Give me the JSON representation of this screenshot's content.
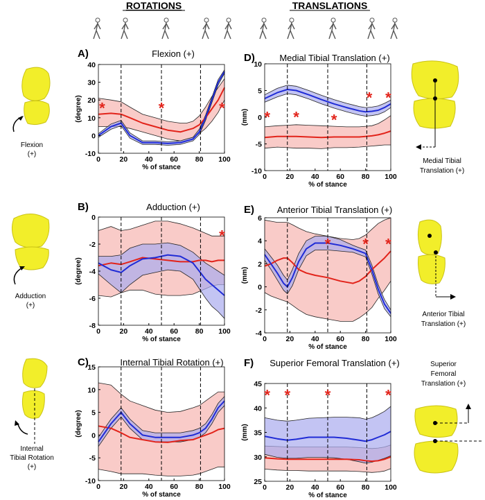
{
  "headers": {
    "rotations": "ROTATIONS",
    "translations": "TRANSLATIONS"
  },
  "side_labels": {
    "flexion": [
      "Flexion",
      "(+)"
    ],
    "adduction": [
      "Adduction",
      "(+)"
    ],
    "internal": [
      "Internal",
      "Tibial Rotation",
      "(+)"
    ],
    "medial": [
      "Medial Tibial",
      "Translation (+)"
    ],
    "anterior": [
      "Anterior Tibial",
      "Translation (+)"
    ],
    "superior": [
      "Superior",
      "Femoral",
      "Translation (+)"
    ]
  },
  "colors": {
    "red": "#e2231a",
    "red_band": "#f7b9b6",
    "blue": "#1f2bd6",
    "blue_band": "#a9abee",
    "bone": "#f2ee2a",
    "bone_dark": "#c9c214"
  },
  "chart_data": [
    {
      "letter": "A)",
      "title": "Flexion (+)",
      "type": "line",
      "xlabel": "% of stance",
      "ylabel": "(degree)",
      "ylim": [
        -10,
        40
      ],
      "yticks": [
        -10,
        0,
        10,
        20,
        30,
        40
      ],
      "xlim": [
        0,
        100
      ],
      "xticks": [
        0,
        20,
        40,
        60,
        80,
        100
      ],
      "vlines": [
        18,
        50,
        81
      ],
      "stars": [
        [
          3,
          16
        ],
        [
          50,
          16
        ],
        [
          98,
          16
        ]
      ],
      "x": [
        0,
        10,
        18,
        25,
        35,
        45,
        55,
        65,
        70,
        75,
        80,
        85,
        90,
        95,
        100
      ],
      "series": [
        {
          "name": "red",
          "mean": [
            12,
            12.5,
            12,
            10,
            7,
            5,
            3,
            2,
            3,
            4,
            6,
            10,
            15,
            20,
            27
          ],
          "upper": [
            21,
            20,
            19,
            16,
            12,
            10,
            8,
            7,
            7,
            8,
            11,
            16,
            22,
            27,
            32
          ],
          "lower": [
            5,
            5,
            5,
            4,
            2,
            0,
            -2,
            -3,
            -2,
            -1,
            1,
            4,
            8,
            13,
            20
          ]
        },
        {
          "name": "blue",
          "mean": [
            0,
            5,
            7,
            0,
            -4,
            -4,
            -4.5,
            -4,
            -3,
            -2,
            2,
            10,
            20,
            30,
            36
          ],
          "upper": [
            1,
            6.5,
            8.5,
            1.5,
            -3,
            -3,
            -3.5,
            -3,
            -2,
            -1,
            3.5,
            11.5,
            21.5,
            31.5,
            37
          ],
          "lower": [
            -1,
            3.5,
            5.5,
            -1.5,
            -5,
            -5,
            -5.5,
            -5,
            -4,
            -3,
            0.5,
            8.5,
            18.5,
            28.5,
            35
          ]
        }
      ]
    },
    {
      "letter": "B)",
      "title": "Adduction (+)",
      "type": "line",
      "xlabel": "% of stance",
      "ylabel": "(degree)",
      "ylim": [
        -8,
        0
      ],
      "yticks": [
        -8,
        -6,
        -4,
        -2,
        0
      ],
      "xlim": [
        0,
        100
      ],
      "xticks": [
        0,
        20,
        40,
        60,
        80,
        100
      ],
      "vlines": [
        18,
        50,
        81
      ],
      "stars": [
        [
          98,
          -1.3
        ]
      ],
      "x": [
        0,
        10,
        18,
        25,
        35,
        45,
        55,
        65,
        75,
        80,
        85,
        90,
        95,
        100
      ],
      "series": [
        {
          "name": "red",
          "mean": [
            -3.6,
            -3.4,
            -3.5,
            -3.3,
            -3.0,
            -3.1,
            -3.2,
            -3.3,
            -3.3,
            -3.2,
            -3.2,
            -3.3,
            -3.2,
            -3.2
          ],
          "upper": [
            -1.0,
            -0.7,
            -1.0,
            -0.9,
            -0.6,
            -0.3,
            -0.3,
            -0.5,
            -0.8,
            -1.0,
            -1.2,
            -1.4,
            -1.4,
            -1.4
          ],
          "lower": [
            -5.8,
            -5.9,
            -5.6,
            -5.4,
            -5.4,
            -5.7,
            -5.8,
            -5.8,
            -5.7,
            -5.5,
            -5.3,
            -5.1,
            -5.0,
            -5.0
          ]
        },
        {
          "name": "blue",
          "mean": [
            -3.4,
            -3.9,
            -4.1,
            -3.6,
            -3.1,
            -3.0,
            -2.8,
            -2.9,
            -3.4,
            -4.0,
            -4.6,
            -5.0,
            -5.4,
            -5.8
          ],
          "upper": [
            -2.9,
            -2.9,
            -2.8,
            -2.3,
            -2.0,
            -2.0,
            -1.9,
            -2.1,
            -2.6,
            -3.0,
            -3.4,
            -3.7,
            -4.0,
            -4.3
          ],
          "lower": [
            -4.2,
            -5.0,
            -5.6,
            -5.0,
            -4.3,
            -4.1,
            -3.9,
            -4.0,
            -4.6,
            -5.3,
            -6.0,
            -6.6,
            -7.0,
            -7.5
          ]
        }
      ]
    },
    {
      "letter": "C)",
      "title": "Internal Tibial Rotation (+)",
      "type": "line",
      "xlabel": "% of stance",
      "ylabel": "(degree)",
      "ylim": [
        -10,
        15
      ],
      "yticks": [
        -10,
        -5,
        0,
        5,
        10,
        15
      ],
      "xlim": [
        0,
        100
      ],
      "xticks": [
        0,
        20,
        40,
        60,
        80,
        100
      ],
      "vlines": [
        18,
        50,
        81
      ],
      "stars": [],
      "x": [
        0,
        10,
        18,
        25,
        35,
        45,
        55,
        65,
        75,
        80,
        85,
        90,
        95,
        100
      ],
      "series": [
        {
          "name": "red",
          "mean": [
            2,
            1.5,
            0.5,
            -0.5,
            -1.0,
            -1.5,
            -1.6,
            -1.2,
            -1.0,
            -0.5,
            0,
            0.5,
            1.2,
            1.5
          ],
          "upper": [
            11.5,
            11,
            9,
            7.5,
            6.5,
            5.5,
            5.0,
            5.2,
            6,
            6.5,
            7.5,
            8.5,
            9.5,
            9.5
          ],
          "lower": [
            -7.5,
            -8,
            -8.5,
            -8.5,
            -8.5,
            -8.8,
            -9,
            -9,
            -8.8,
            -8.5,
            -8.0,
            -7.5,
            -7.0,
            -7.0
          ]
        },
        {
          "name": "blue",
          "mean": [
            -1.5,
            2.5,
            5,
            2.5,
            0,
            -0.5,
            -0.5,
            -0.5,
            0,
            0.5,
            1.5,
            3.5,
            6,
            7.5
          ],
          "upper": [
            -0.5,
            3.5,
            6,
            3.5,
            1.0,
            0.5,
            0.5,
            0.5,
            1.0,
            1.5,
            2.5,
            4.5,
            7,
            8.5
          ],
          "lower": [
            -2.5,
            1.5,
            4,
            1.5,
            -1.0,
            -1.5,
            -1.5,
            -1.5,
            -1.0,
            -0.5,
            0.5,
            2.5,
            5,
            6.5
          ]
        }
      ]
    },
    {
      "letter": "D)",
      "title": "Medial Tibial Translation (+)",
      "type": "line",
      "xlabel": "% of stance",
      "ylabel": "(mm)",
      "ylim": [
        -10,
        10
      ],
      "yticks": [
        -10,
        -5,
        0,
        5,
        10
      ],
      "xlim": [
        0,
        100
      ],
      "xticks": [
        0,
        20,
        40,
        60,
        80,
        100
      ],
      "vlines": [
        18,
        50,
        81
      ],
      "stars": [
        [
          2,
          0.2
        ],
        [
          25,
          0.2
        ],
        [
          55,
          -0.3
        ],
        [
          83,
          3.8
        ],
        [
          98,
          3.8
        ]
      ],
      "x": [
        0,
        10,
        18,
        25,
        35,
        45,
        55,
        65,
        75,
        80,
        85,
        90,
        95,
        100
      ],
      "series": [
        {
          "name": "red",
          "mean": [
            -3.8,
            -3.6,
            -3.6,
            -3.6,
            -3.7,
            -3.8,
            -3.7,
            -3.7,
            -3.7,
            -3.6,
            -3.5,
            -3.3,
            -3.0,
            -2.6
          ],
          "upper": [
            -1.8,
            -1.6,
            -1.5,
            -1.4,
            -1.5,
            -1.6,
            -1.7,
            -1.8,
            -1.8,
            -1.7,
            -1.6,
            -1.2,
            -0.5,
            0.3
          ],
          "lower": [
            -5.8,
            -5.6,
            -5.7,
            -5.8,
            -5.8,
            -5.9,
            -5.7,
            -5.7,
            -5.6,
            -5.5,
            -5.4,
            -5.3,
            -5.2,
            -5.2
          ]
        },
        {
          "name": "blue",
          "mean": [
            3.5,
            4.6,
            5.2,
            5.0,
            4.2,
            3.3,
            2.5,
            1.8,
            1.2,
            1.0,
            1.1,
            1.3,
            1.8,
            2.5
          ],
          "upper": [
            4.2,
            5.4,
            6.0,
            5.8,
            5.0,
            4.1,
            3.3,
            2.6,
            2.0,
            1.8,
            1.9,
            2.1,
            2.6,
            3.2
          ],
          "lower": [
            2.8,
            3.8,
            4.4,
            4.2,
            3.4,
            2.5,
            1.7,
            1.0,
            0.4,
            0.2,
            0.3,
            0.5,
            1.0,
            1.8
          ]
        }
      ]
    },
    {
      "letter": "E)",
      "title": "Anterior Tibial Translation (+)",
      "type": "line",
      "xlabel": "% of stance",
      "ylabel": "(mm)",
      "ylim": [
        -4,
        6
      ],
      "yticks": [
        -4,
        -2,
        0,
        2,
        4,
        6
      ],
      "xlim": [
        0,
        100
      ],
      "xticks": [
        0,
        20,
        40,
        60,
        80,
        100
      ],
      "vlines": [
        18,
        50,
        81
      ],
      "stars": [
        [
          50,
          3.8
        ],
        [
          80,
          3.8
        ],
        [
          98,
          3.8
        ]
      ],
      "x": [
        0,
        5,
        10,
        15,
        18,
        22,
        27,
        33,
        40,
        50,
        60,
        70,
        75,
        80,
        85,
        90,
        95,
        100
      ],
      "series": [
        {
          "name": "red",
          "mean": [
            1.8,
            2.0,
            2.3,
            2.5,
            2.5,
            2.1,
            1.5,
            1.2,
            1.0,
            0.8,
            0.5,
            0.3,
            0.5,
            0.9,
            1.5,
            2.0,
            2.5,
            3.1
          ],
          "upper": [
            5.8,
            5.7,
            5.6,
            5.6,
            5.6,
            5.4,
            5.1,
            4.8,
            4.6,
            4.4,
            4.2,
            4.1,
            4.2,
            4.5,
            5.0,
            5.5,
            5.8,
            6.0
          ],
          "lower": [
            -0.5,
            -0.8,
            -1.0,
            -1.2,
            -1.3,
            -1.6,
            -2.0,
            -2.4,
            -2.6,
            -2.8,
            -3.0,
            -3.0,
            -2.7,
            -2.3,
            -1.8,
            -1.0,
            -0.3,
            0.5
          ]
        },
        {
          "name": "blue",
          "mean": [
            2.8,
            2.0,
            1.2,
            0.3,
            0.0,
            0.8,
            2.2,
            3.3,
            3.8,
            3.8,
            3.6,
            3.3,
            3.1,
            2.9,
            1.5,
            -0.2,
            -1.5,
            -2.3
          ],
          "upper": [
            3.3,
            2.6,
            1.9,
            1.0,
            0.6,
            1.5,
            2.9,
            4.0,
            4.4,
            4.4,
            4.1,
            3.6,
            3.4,
            3.2,
            1.9,
            0.2,
            -1.1,
            -2.0
          ],
          "lower": [
            2.3,
            1.5,
            0.6,
            -0.3,
            -0.6,
            0.1,
            1.5,
            2.7,
            3.2,
            3.2,
            3.1,
            3.0,
            2.8,
            2.6,
            1.1,
            -0.6,
            -1.9,
            -2.6
          ]
        }
      ]
    },
    {
      "letter": "F)",
      "title": "Superior Femoral Translation (+)",
      "type": "line",
      "xlabel": "% of stance",
      "ylabel": "(mm)",
      "ylim": [
        25,
        45
      ],
      "yticks": [
        25,
        30,
        35,
        40,
        45
      ],
      "xlim": [
        0,
        100
      ],
      "xticks": [
        0,
        20,
        40,
        60,
        80,
        100
      ],
      "vlines": [
        18,
        50,
        81
      ],
      "stars": [
        [
          2,
          42.8
        ],
        [
          18,
          42.8
        ],
        [
          50,
          42.8
        ],
        [
          98,
          42.8
        ]
      ],
      "x": [
        0,
        10,
        18,
        25,
        35,
        45,
        55,
        65,
        75,
        80,
        85,
        90,
        95,
        100
      ],
      "series": [
        {
          "name": "red",
          "mean": [
            29.8,
            29.6,
            29.5,
            29.5,
            29.5,
            29.5,
            29.5,
            29.5,
            29.4,
            29.2,
            29.1,
            29.2,
            29.5,
            30.0
          ],
          "upper": [
            32.2,
            32.1,
            32.0,
            32.0,
            32.0,
            32.0,
            32.0,
            32.0,
            31.9,
            31.8,
            31.7,
            31.8,
            32.0,
            32.4
          ],
          "lower": [
            27.5,
            27.3,
            27.2,
            27.2,
            27.1,
            27.1,
            27.1,
            27.1,
            27.0,
            26.9,
            26.8,
            26.9,
            27.1,
            27.6
          ]
        },
        {
          "name": "blue",
          "mean": [
            34.2,
            33.7,
            33.4,
            33.6,
            34.0,
            34.0,
            34.0,
            33.8,
            33.4,
            33.2,
            33.5,
            34.0,
            34.5,
            35.2
          ],
          "upper": [
            38.0,
            37.5,
            37.3,
            37.5,
            37.9,
            38.0,
            38.1,
            38.1,
            38.0,
            37.7,
            38.0,
            38.6,
            39.3,
            40.3
          ],
          "lower": [
            30.5,
            29.9,
            29.7,
            29.7,
            29.9,
            29.9,
            29.8,
            29.5,
            29.0,
            28.7,
            28.9,
            29.3,
            29.7,
            30.2
          ]
        }
      ]
    }
  ]
}
